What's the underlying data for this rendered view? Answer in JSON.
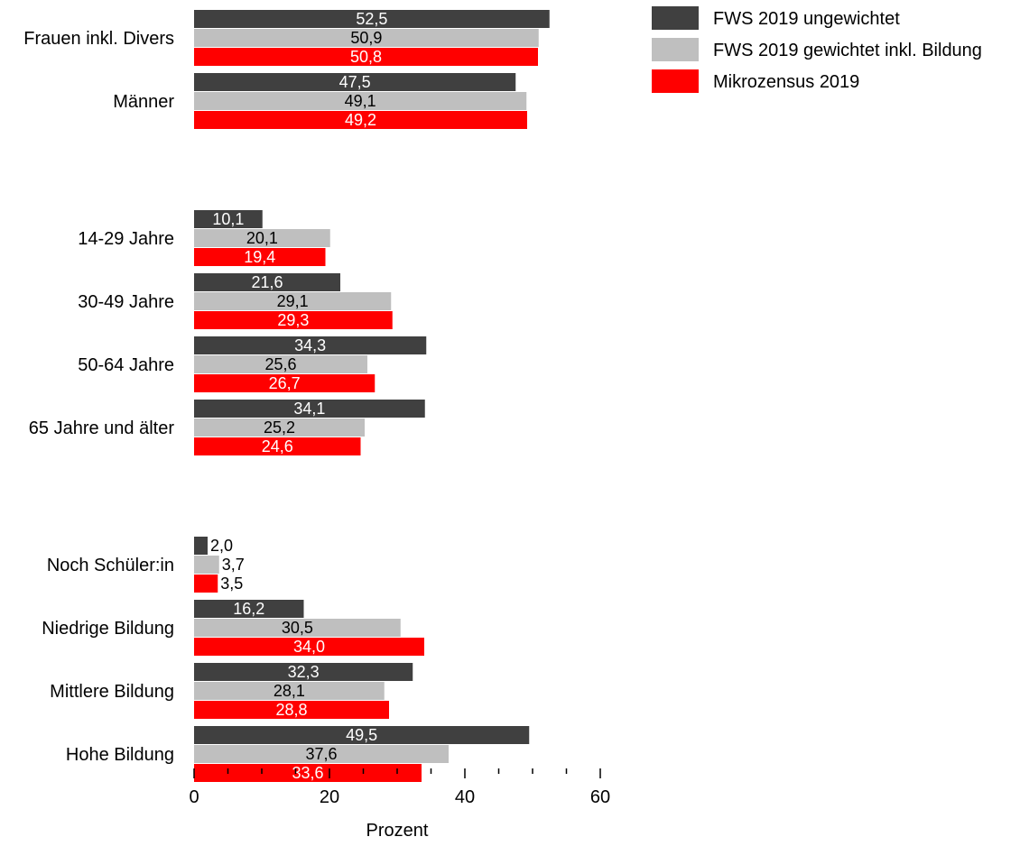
{
  "chart_data": {
    "type": "bar",
    "orientation": "horizontal",
    "title": "",
    "xlabel": "Prozent",
    "ylabel": "",
    "xlim": [
      0,
      60
    ],
    "major_ticks": [
      0,
      20,
      40,
      60
    ],
    "minor_ticks": [
      5,
      10,
      15,
      25,
      30,
      35,
      45,
      50,
      55
    ],
    "tick_labels": [
      "0",
      "20",
      "40",
      "60"
    ],
    "grid": false,
    "legend_position": "top-right",
    "colors": {
      "FWS 2019 ungewichtet": "#404040",
      "FWS 2019 gewichtet inkl. Bildung": "#bfbfbf",
      "Mikrozensus 2019": "#ff0000"
    },
    "series": [
      {
        "name": "FWS 2019 ungewichtet",
        "color": "#404040",
        "label_color": "#ffffff"
      },
      {
        "name": "FWS 2019 gewichtet inkl. Bildung",
        "color": "#bfbfbf",
        "label_color": "#000000"
      },
      {
        "name": "Mikrozensus 2019",
        "color": "#ff0000",
        "label_color": "#ffffff"
      }
    ],
    "groups": [
      {
        "categories": [
          {
            "label": "Frauen inkl. Divers",
            "values": [
              52.5,
              50.9,
              50.8
            ],
            "labels": [
              "52,5",
              "50,9",
              "50,8"
            ]
          },
          {
            "label": "Männer",
            "values": [
              47.5,
              49.1,
              49.2
            ],
            "labels": [
              "47,5",
              "49,1",
              "49,2"
            ]
          }
        ]
      },
      {
        "categories": [
          {
            "label": "14-29 Jahre",
            "values": [
              10.1,
              20.1,
              19.4
            ],
            "labels": [
              "10,1",
              "20,1",
              "19,4"
            ]
          },
          {
            "label": "30-49 Jahre",
            "values": [
              21.6,
              29.1,
              29.3
            ],
            "labels": [
              "21,6",
              "29,1",
              "29,3"
            ]
          },
          {
            "label": "50-64 Jahre",
            "values": [
              34.3,
              25.6,
              26.7
            ],
            "labels": [
              "34,3",
              "25,6",
              "26,7"
            ]
          },
          {
            "label": "65 Jahre und älter",
            "values": [
              34.1,
              25.2,
              24.6
            ],
            "labels": [
              "34,1",
              "25,2",
              "24,6"
            ]
          }
        ]
      },
      {
        "categories": [
          {
            "label": "Noch Schüler:in",
            "values": [
              2.0,
              3.7,
              3.5
            ],
            "labels": [
              "2,0",
              "3,7",
              "3,5"
            ]
          },
          {
            "label": "Niedrige Bildung",
            "values": [
              16.2,
              30.5,
              34.0
            ],
            "labels": [
              "16,2",
              "30,5",
              "34,0"
            ]
          },
          {
            "label": "Mittlere Bildung",
            "values": [
              32.3,
              28.1,
              28.8
            ],
            "labels": [
              "32,3",
              "28,1",
              "28,8"
            ]
          },
          {
            "label": "Hohe Bildung",
            "values": [
              49.5,
              37.6,
              33.6
            ],
            "labels": [
              "49,5",
              "37,6",
              "33,6"
            ]
          }
        ]
      }
    ]
  }
}
